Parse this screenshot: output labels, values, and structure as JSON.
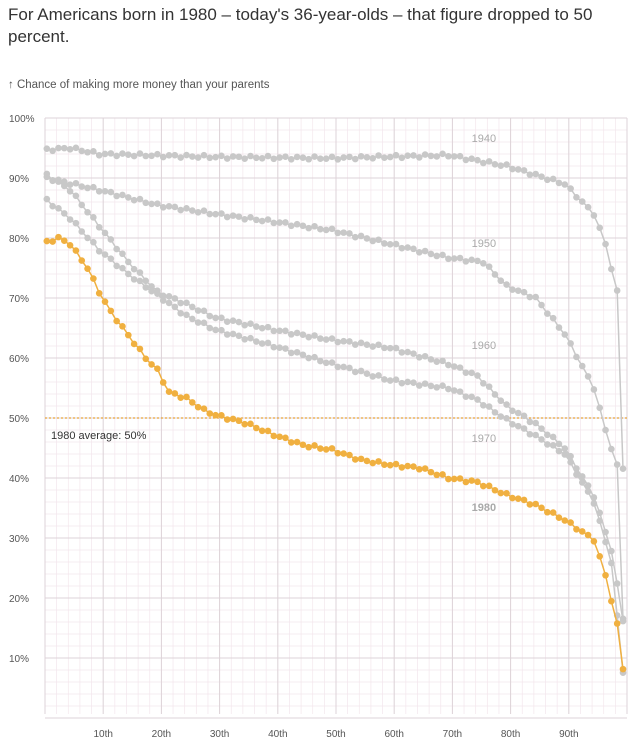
{
  "title": "For Americans born in 1980 – today's 36-year-olds –  that figure dropped to 50 percent.",
  "chart_data": {
    "type": "scatter",
    "title": "For Americans born in 1980 – today's 36-year-olds –  that figure dropped to 50 percent.",
    "ylabel": "↑ Chance of making more money than your parents",
    "xlabel": "",
    "xlim": [
      0,
      100
    ],
    "ylim": [
      0,
      100
    ],
    "grid": true,
    "x_ticks": [
      {
        "v": 10,
        "label": "10th"
      },
      {
        "v": 20,
        "label": "20th"
      },
      {
        "v": 30,
        "label": "30th"
      },
      {
        "v": 40,
        "label": "40th"
      },
      {
        "v": 50,
        "label": "50th"
      },
      {
        "v": 60,
        "label": "60th"
      },
      {
        "v": 70,
        "label": "70th"
      },
      {
        "v": 80,
        "label": "80th"
      },
      {
        "v": 90,
        "label": "90th"
      }
    ],
    "y_ticks": [
      {
        "v": 100,
        "label": "100%"
      },
      {
        "v": 90,
        "label": "90%"
      },
      {
        "v": 80,
        "label": "80%"
      },
      {
        "v": 70,
        "label": "70%"
      },
      {
        "v": 60,
        "label": "60%"
      },
      {
        "v": 50,
        "label": "50%"
      },
      {
        "v": 40,
        "label": "40%"
      },
      {
        "v": 30,
        "label": "30%"
      },
      {
        "v": 20,
        "label": "20%"
      },
      {
        "v": 10,
        "label": "10%"
      }
    ],
    "reference_line": {
      "value": 50,
      "label": "1980 average: 50%",
      "color": "#e8a33a"
    },
    "series": [
      {
        "name": "1940",
        "color": "#c8c8c8",
        "label_at": [
          74,
          96
        ],
        "points": [
          [
            1,
            94.7
          ],
          [
            5,
            95
          ],
          [
            10,
            94
          ],
          [
            30,
            93.5
          ],
          [
            50,
            93.3
          ],
          [
            70,
            93.8
          ],
          [
            80,
            92
          ],
          [
            90,
            89
          ],
          [
            95,
            84
          ],
          [
            97,
            79
          ],
          [
            99,
            71
          ],
          [
            100,
            41.7
          ]
        ]
      },
      {
        "name": "1950",
        "color": "#c8c8c8",
        "label_at": [
          74,
          78.5
        ],
        "points": [
          [
            1,
            90
          ],
          [
            10,
            88
          ],
          [
            20,
            85.5
          ],
          [
            30,
            84
          ],
          [
            40,
            82.7
          ],
          [
            50,
            81.3
          ],
          [
            60,
            79
          ],
          [
            70,
            76.7
          ],
          [
            76,
            76
          ],
          [
            80,
            72
          ],
          [
            85,
            70
          ],
          [
            90,
            64
          ],
          [
            95,
            55
          ],
          [
            97,
            48
          ],
          [
            99,
            42
          ],
          [
            100,
            16.7
          ]
        ]
      },
      {
        "name": "1960",
        "color": "#c8c8c8",
        "label_at": [
          74,
          61.5
        ],
        "points": [
          [
            1,
            90.5
          ],
          [
            5,
            88
          ],
          [
            10,
            82
          ],
          [
            15,
            76
          ],
          [
            20,
            71
          ],
          [
            25,
            69
          ],
          [
            30,
            66.7
          ],
          [
            40,
            64.7
          ],
          [
            50,
            63
          ],
          [
            60,
            61.7
          ],
          [
            70,
            59
          ],
          [
            75,
            57
          ],
          [
            80,
            52
          ],
          [
            85,
            49
          ],
          [
            90,
            45
          ],
          [
            95,
            37
          ],
          [
            98,
            28
          ],
          [
            100,
            16.3
          ]
        ]
      },
      {
        "name": "1970",
        "color": "#c8c8c8",
        "label_at": [
          74,
          46
        ],
        "points": [
          [
            1,
            86.3
          ],
          [
            5,
            83.3
          ],
          [
            10,
            78
          ],
          [
            15,
            74
          ],
          [
            20,
            70.5
          ],
          [
            25,
            67
          ],
          [
            30,
            64.7
          ],
          [
            40,
            62
          ],
          [
            50,
            59
          ],
          [
            60,
            56.3
          ],
          [
            70,
            55
          ],
          [
            75,
            53
          ],
          [
            80,
            49.7
          ],
          [
            85,
            47
          ],
          [
            90,
            44
          ],
          [
            95,
            36
          ],
          [
            98,
            26
          ],
          [
            100,
            7.7
          ]
        ]
      },
      {
        "name": "1980",
        "color": "#f0b040",
        "label_at": [
          74,
          34.5
        ],
        "points": [
          [
            1,
            79.3
          ],
          [
            3,
            80
          ],
          [
            5,
            79
          ],
          [
            8,
            75
          ],
          [
            10,
            71
          ],
          [
            12,
            67.7
          ],
          [
            15,
            63.8
          ],
          [
            18,
            60
          ],
          [
            20,
            58
          ],
          [
            22,
            54.3
          ],
          [
            25,
            53.3
          ],
          [
            28,
            51.3
          ],
          [
            30,
            50.5
          ],
          [
            35,
            49.2
          ],
          [
            40,
            47.2
          ],
          [
            45,
            45.5
          ],
          [
            50,
            44.7
          ],
          [
            55,
            43
          ],
          [
            60,
            42.2
          ],
          [
            65,
            41.7
          ],
          [
            70,
            40
          ],
          [
            75,
            39.3
          ],
          [
            80,
            37.2
          ],
          [
            85,
            35.5
          ],
          [
            90,
            33
          ],
          [
            95,
            29.7
          ],
          [
            97,
            23.8
          ],
          [
            99,
            15.5
          ],
          [
            100,
            8.3
          ]
        ]
      }
    ]
  }
}
